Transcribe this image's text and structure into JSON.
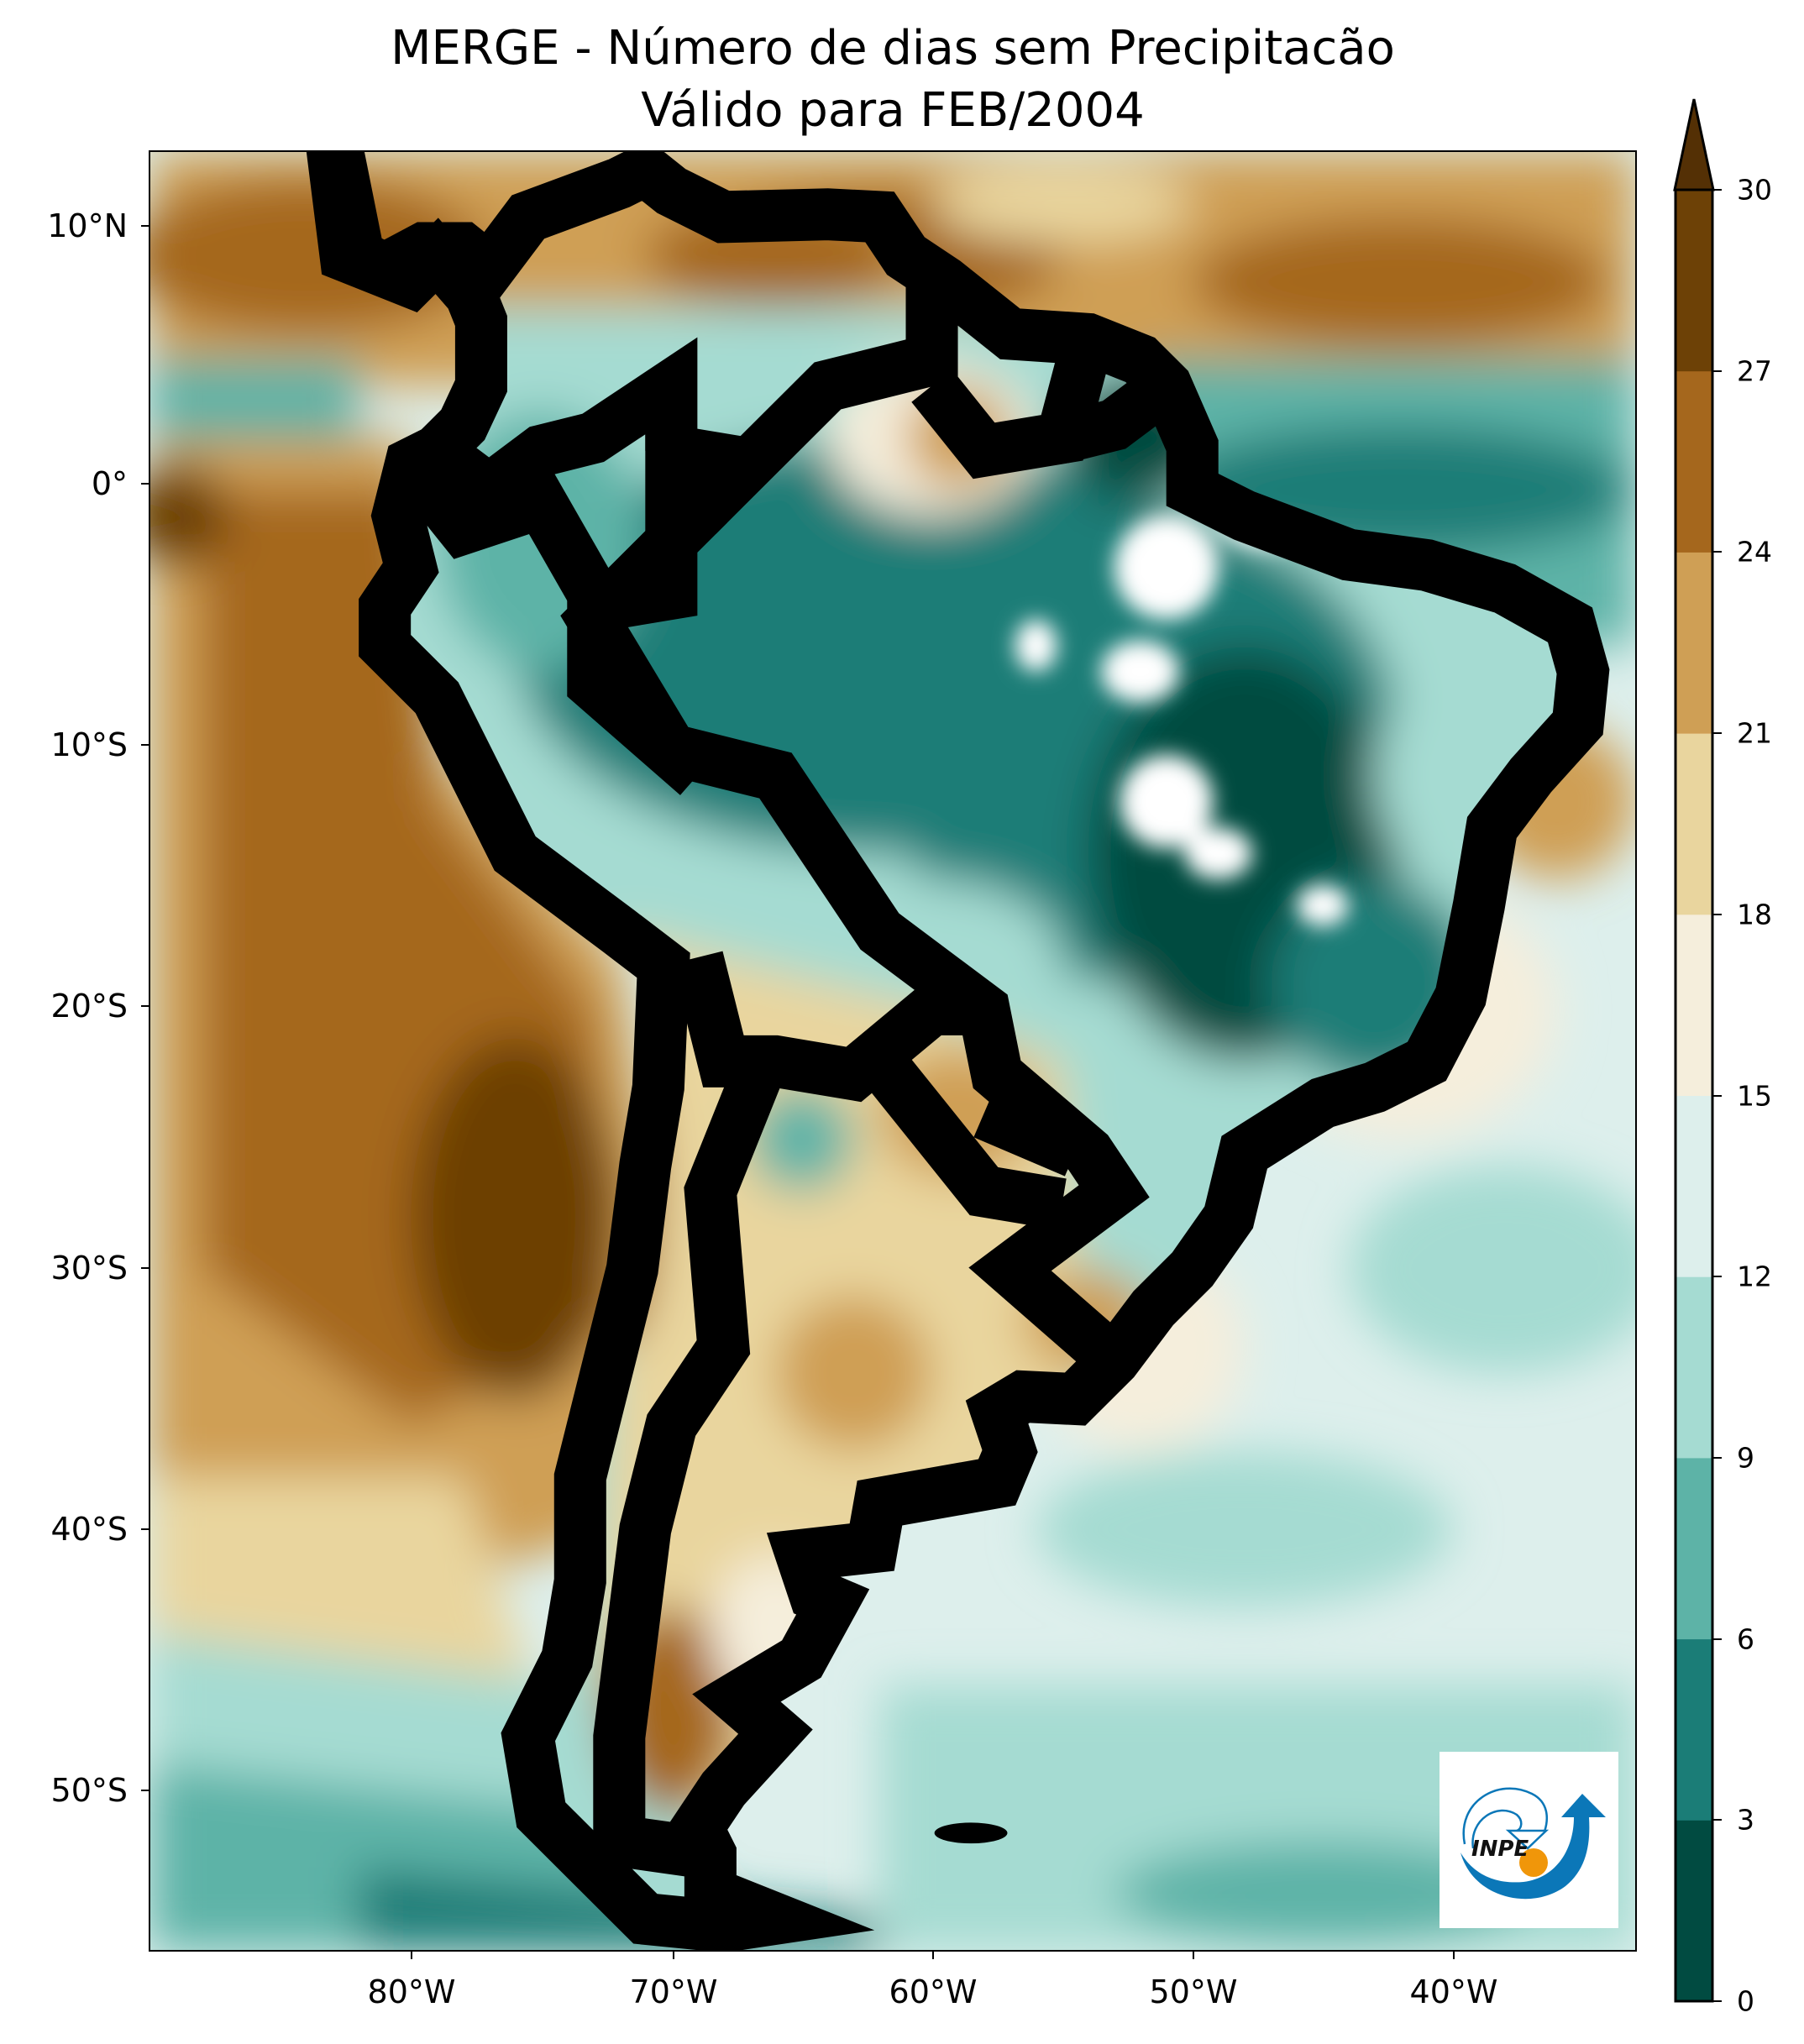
{
  "title": {
    "line1": "MERGE - Número de dias sem Precipitacão",
    "line2": "Válido para FEB/2004"
  },
  "axes": {
    "lat_ticks": [
      "10°N",
      "0°",
      "10°S",
      "20°S",
      "30°S",
      "40°S",
      "50°S"
    ],
    "lon_ticks": [
      "80°W",
      "70°W",
      "60°W",
      "50°W",
      "40°W"
    ]
  },
  "colorbar": {
    "labels": [
      "0",
      "3",
      "6",
      "9",
      "12",
      "15",
      "18",
      "21",
      "24",
      "27",
      "30"
    ],
    "colors": [
      "#014b41",
      "#1b7d77",
      "#5db3a7",
      "#a5dbd2",
      "#ddefec",
      "#f5eedc",
      "#e9d59e",
      "#cf9f55",
      "#a5671d",
      "#6d4106"
    ],
    "extend_color": "#543005",
    "extend": "max"
  },
  "logo": {
    "text": "INPE",
    "colors": {
      "blue": "#0b77b8",
      "orange": "#f0960a"
    }
  },
  "no_data_color": "#ffffff"
}
